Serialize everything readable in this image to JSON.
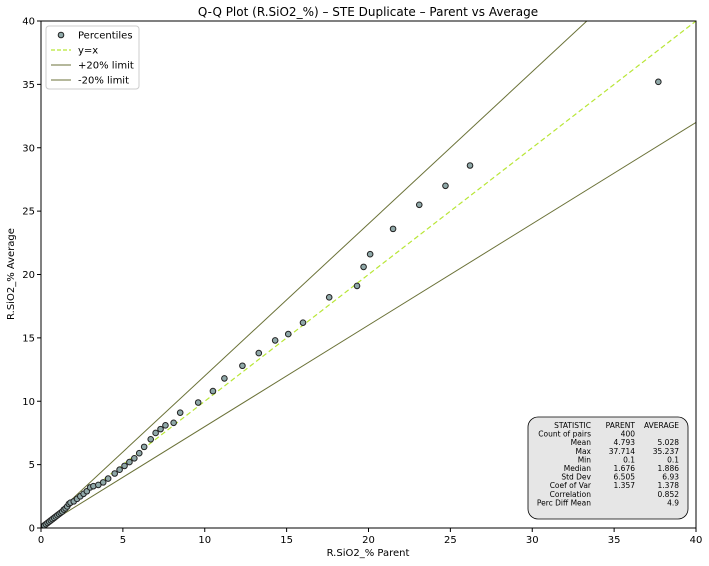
{
  "chart_data": {
    "type": "scatter",
    "title": "Q-Q Plot (R.SiO2_%) – STE Duplicate – Parent vs Average",
    "xlabel": "R.SiO2_% Parent",
    "ylabel": "R.SiO2_% Average",
    "xlim": [
      0,
      40
    ],
    "ylim": [
      0,
      40
    ],
    "xticks": [
      0,
      5,
      10,
      15,
      20,
      25,
      30,
      35,
      40
    ],
    "yticks": [
      0,
      5,
      10,
      15,
      20,
      25,
      30,
      35,
      40
    ],
    "grid": false,
    "legend_position": "top-left",
    "legend": [
      {
        "label": "Percentiles",
        "kind": "marker"
      },
      {
        "label": "y=x",
        "kind": "dashed-line"
      },
      {
        "label": "+20% limit",
        "kind": "line"
      },
      {
        "label": "-20% limit",
        "kind": "line"
      }
    ],
    "colors": {
      "marker_face": "#8fa8a8",
      "marker_edge": "#222222",
      "yx_line": "#b8e636",
      "limit_line": "#6b7238",
      "stats_box_fill": "#e6e6e6"
    },
    "series": [
      {
        "name": "Percentiles",
        "points": [
          [
            0.2,
            0.2
          ],
          [
            0.3,
            0.3
          ],
          [
            0.4,
            0.4
          ],
          [
            0.5,
            0.5
          ],
          [
            0.6,
            0.6
          ],
          [
            0.7,
            0.7
          ],
          [
            0.8,
            0.8
          ],
          [
            0.9,
            0.9
          ],
          [
            1.0,
            1.0
          ],
          [
            1.1,
            1.1
          ],
          [
            1.2,
            1.2
          ],
          [
            1.3,
            1.3
          ],
          [
            1.4,
            1.45
          ],
          [
            1.5,
            1.55
          ],
          [
            1.6,
            1.7
          ],
          [
            1.7,
            1.9
          ],
          [
            1.8,
            2.0
          ],
          [
            2.0,
            2.1
          ],
          [
            2.2,
            2.3
          ],
          [
            2.4,
            2.5
          ],
          [
            2.6,
            2.7
          ],
          [
            2.8,
            2.9
          ],
          [
            3.0,
            3.2
          ],
          [
            3.2,
            3.3
          ],
          [
            3.5,
            3.4
          ],
          [
            3.8,
            3.6
          ],
          [
            4.1,
            3.9
          ],
          [
            4.5,
            4.3
          ],
          [
            4.8,
            4.6
          ],
          [
            5.1,
            4.9
          ],
          [
            5.4,
            5.2
          ],
          [
            5.7,
            5.5
          ],
          [
            6.0,
            5.9
          ],
          [
            6.3,
            6.4
          ],
          [
            6.7,
            7.0
          ],
          [
            7.0,
            7.5
          ],
          [
            7.3,
            7.8
          ],
          [
            7.6,
            8.1
          ],
          [
            8.1,
            8.3
          ],
          [
            8.5,
            9.1
          ],
          [
            9.6,
            9.9
          ],
          [
            10.5,
            10.8
          ],
          [
            11.2,
            11.8
          ],
          [
            12.3,
            12.8
          ],
          [
            13.3,
            13.8
          ],
          [
            14.3,
            14.8
          ],
          [
            15.1,
            15.3
          ],
          [
            16.0,
            16.2
          ],
          [
            17.6,
            18.2
          ],
          [
            19.3,
            19.1
          ],
          [
            19.7,
            20.6
          ],
          [
            20.1,
            21.6
          ],
          [
            21.5,
            23.6
          ],
          [
            23.1,
            25.5
          ],
          [
            24.7,
            27.0
          ],
          [
            26.2,
            28.6
          ],
          [
            37.7,
            35.2
          ]
        ]
      },
      {
        "name": "y=x",
        "line": [
          [
            0,
            0
          ],
          [
            40,
            40
          ]
        ]
      },
      {
        "name": "+20% limit",
        "line": [
          [
            0,
            0
          ],
          [
            40,
            48
          ]
        ]
      },
      {
        "name": "-20% limit",
        "line": [
          [
            0,
            0
          ],
          [
            40,
            32
          ]
        ]
      }
    ],
    "stats_table": {
      "headers": [
        "STATISTIC",
        "PARENT",
        "AVERAGE"
      ],
      "rows": [
        [
          "Count of pairs",
          "400",
          ""
        ],
        [
          "Mean",
          "4.793",
          "5.028"
        ],
        [
          "Max",
          "37.714",
          "35.237"
        ],
        [
          "Min",
          "0.1",
          "0.1"
        ],
        [
          "Median",
          "1.676",
          "1.886"
        ],
        [
          "Std Dev",
          "6.505",
          "6.93"
        ],
        [
          "Coef of Var",
          "1.357",
          "1.378"
        ],
        [
          "Correlation",
          "",
          "0.852"
        ],
        [
          "Perc Diff Mean",
          "",
          "4.9"
        ]
      ]
    }
  }
}
